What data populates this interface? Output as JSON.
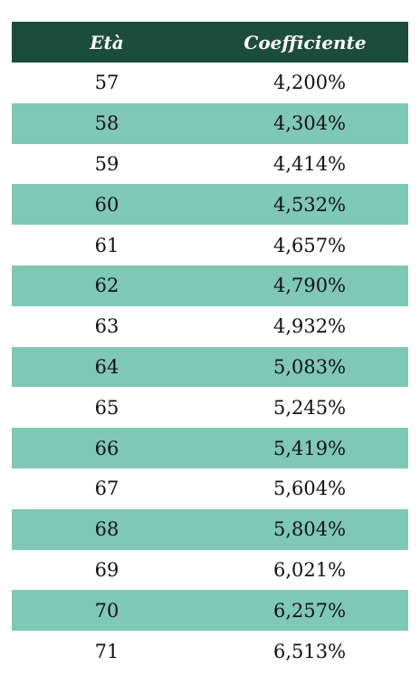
{
  "table": {
    "headers": {
      "age": "Età",
      "coefficient": "Coefficiente"
    },
    "rows": [
      {
        "age": "57",
        "coefficient": "4,200%"
      },
      {
        "age": "58",
        "coefficient": "4,304%"
      },
      {
        "age": "59",
        "coefficient": "4,414%"
      },
      {
        "age": "60",
        "coefficient": "4,532%"
      },
      {
        "age": "61",
        "coefficient": "4,657%"
      },
      {
        "age": "62",
        "coefficient": "4,790%"
      },
      {
        "age": "63",
        "coefficient": "4,932%"
      },
      {
        "age": "64",
        "coefficient": "5,083%"
      },
      {
        "age": "65",
        "coefficient": "5,245%"
      },
      {
        "age": "66",
        "coefficient": "5,419%"
      },
      {
        "age": "67",
        "coefficient": "5,604%"
      },
      {
        "age": "68",
        "coefficient": "5,804%"
      },
      {
        "age": "69",
        "coefficient": "6,021%"
      },
      {
        "age": "70",
        "coefficient": "6,257%"
      },
      {
        "age": "71",
        "coefficient": "6,513%"
      }
    ]
  },
  "colors": {
    "header_bg": "#1c4d3c",
    "header_text": "#ffffff",
    "alt_row_bg": "#7fc8b6",
    "row_bg": "#ffffff"
  }
}
